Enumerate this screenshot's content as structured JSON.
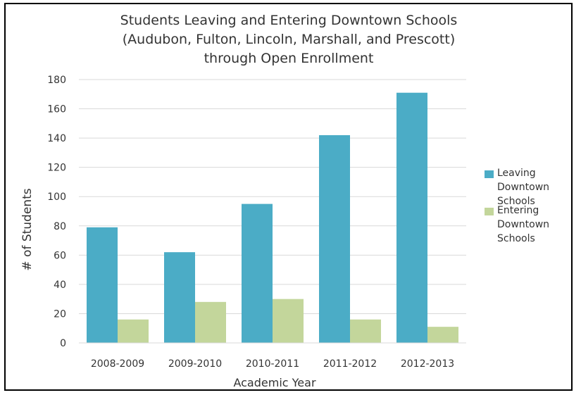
{
  "chart_data": {
    "type": "bar",
    "title_lines": [
      "Students Leaving and Entering Downtown Schools",
      "(Audubon, Fulton, Lincoln, Marshall, and Prescott)",
      "through Open Enrollment"
    ],
    "xlabel": "Academic Year",
    "ylabel": "# of Students",
    "categories": [
      "2008-2009",
      "2009-2010",
      "2010-2011",
      "2011-2012",
      "2012-2013"
    ],
    "ylim": [
      0,
      180
    ],
    "yticks": [
      0,
      20,
      40,
      60,
      80,
      100,
      120,
      140,
      160,
      180
    ],
    "grid": true,
    "legend_position": "right",
    "series": [
      {
        "name": "Leaving Downtown Schools",
        "legend_lines": [
          "Leaving",
          "Downtown",
          "Schools"
        ],
        "color": "#4bacc6",
        "values": [
          79,
          62,
          95,
          142,
          171
        ]
      },
      {
        "name": "Entering Downtown Schools",
        "legend_lines": [
          "Entering",
          "Downtown",
          "Schools"
        ],
        "color": "#c3d69b",
        "values": [
          16,
          28,
          30,
          16,
          11
        ]
      }
    ]
  }
}
